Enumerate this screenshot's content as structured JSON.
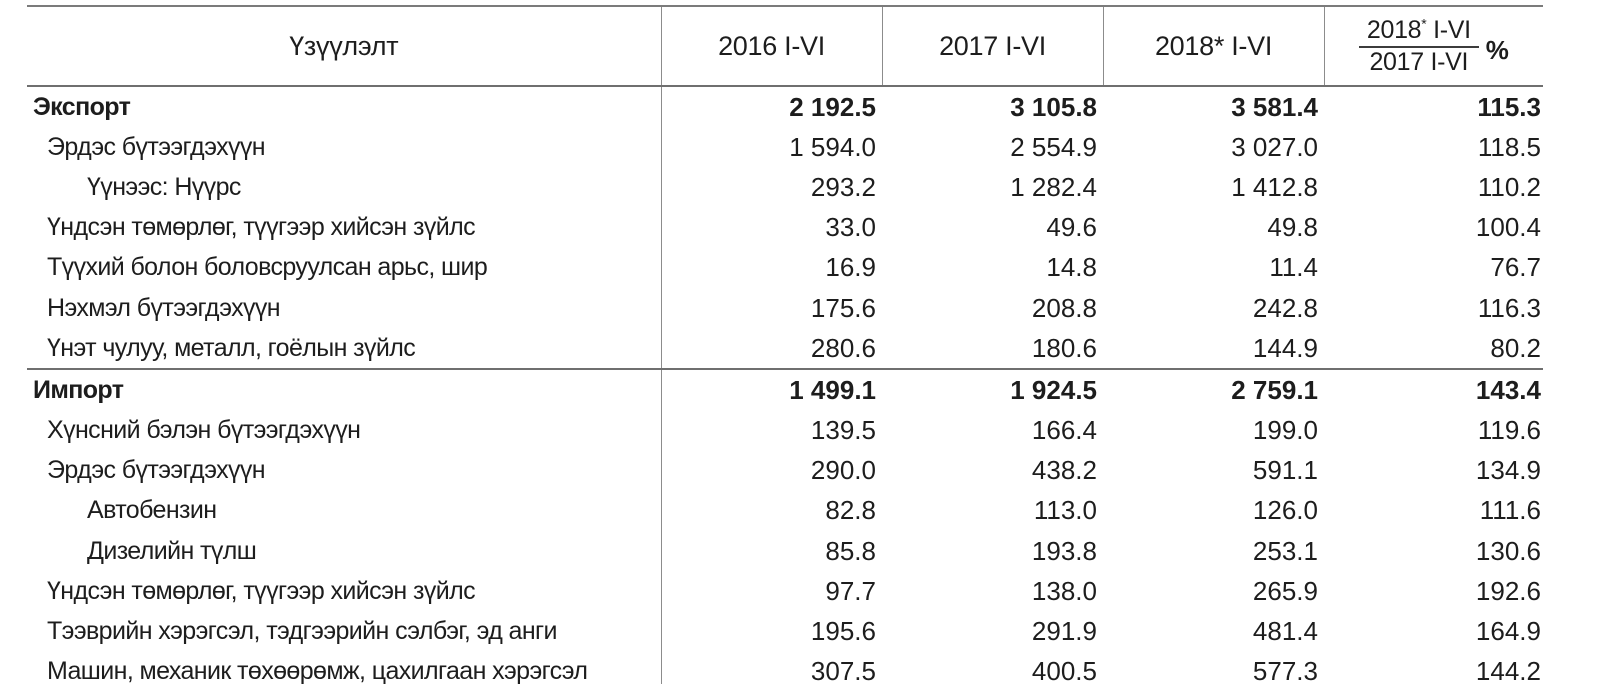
{
  "table": {
    "columns": {
      "indicator": "Үзүүлэлт",
      "y2016": "2016 I-VI",
      "y2017": "2017 I-VI",
      "y2018": "2018* I-VI"
    },
    "ratio_header": {
      "numerator_base": "2018",
      "numerator_star": "*",
      "numerator_suffix": " I-VI",
      "denominator": "2017 I-VI",
      "unit": "%"
    },
    "sections": [
      {
        "id": "export",
        "header": {
          "label": "Экспорт",
          "values": [
            "2 192.5",
            "3 105.8",
            "3 581.4",
            "115.3"
          ]
        },
        "rows": [
          {
            "label": "Эрдэс бүтээгдэхүүн",
            "indent": 1,
            "values": [
              "1 594.0",
              "2 554.9",
              "3 027.0",
              "118.5"
            ]
          },
          {
            "label": "Үүнээс: Нүүрс",
            "indent": 2,
            "values": [
              "293.2",
              "1 282.4",
              "1 412.8",
              "110.2"
            ]
          },
          {
            "label": "Үндсэн төмөрлөг, түүгээр хийсэн зүйлс",
            "indent": 1,
            "values": [
              "33.0",
              "49.6",
              "49.8",
              "100.4"
            ]
          },
          {
            "label": "Түүхий болон боловсруулсан арьс, шир",
            "indent": 1,
            "values": [
              "16.9",
              "14.8",
              "11.4",
              "76.7"
            ]
          },
          {
            "label": "Нэхмэл бүтээгдэхүүн",
            "indent": 1,
            "values": [
              "175.6",
              "208.8",
              "242.8",
              "116.3"
            ]
          },
          {
            "label": "Үнэт чулуу, металл, гоёлын зүйлс",
            "indent": 1,
            "values": [
              "280.6",
              "180.6",
              "144.9",
              "80.2"
            ]
          }
        ]
      },
      {
        "id": "import",
        "header": {
          "label": "Импорт",
          "values": [
            "1 499.1",
            "1 924.5",
            "2 759.1",
            "143.4"
          ]
        },
        "rows": [
          {
            "label": "Хүнсний бэлэн бүтээгдэхүүн",
            "indent": 1,
            "values": [
              "139.5",
              "166.4",
              "199.0",
              "119.6"
            ]
          },
          {
            "label": "Эрдэс бүтээгдэхүүн",
            "indent": 1,
            "values": [
              "290.0",
              "438.2",
              "591.1",
              "134.9"
            ]
          },
          {
            "label": "Автобензин",
            "indent": 2,
            "values": [
              "82.8",
              "113.0",
              "126.0",
              "111.6"
            ]
          },
          {
            "label": "Дизелийн түлш",
            "indent": 2,
            "values": [
              "85.8",
              "193.8",
              "253.1",
              "130.6"
            ]
          },
          {
            "label": "Үндсэн төмөрлөг, түүгээр хийсэн зүйлс",
            "indent": 1,
            "values": [
              "97.7",
              "138.0",
              "265.9",
              "192.6"
            ]
          },
          {
            "label": "Тээврийн хэрэгсэл, тэдгээрийн сэлбэг, эд анги",
            "indent": 1,
            "values": [
              "195.6",
              "291.9",
              "481.4",
              "164.9"
            ]
          },
          {
            "label": "Машин, механик төхөөрөмж, цахилгаан хэрэгсэл",
            "indent": 1,
            "values": [
              "307.5",
              "400.5",
              "577.3",
              "144.2"
            ]
          }
        ]
      }
    ]
  },
  "chart_data": {
    "type": "table",
    "title": "",
    "columns": [
      "Үзүүлэлт",
      "2016 I-VI",
      "2017 I-VI",
      "2018* I-VI",
      "2018* I-VI / 2017 I-VI %"
    ],
    "rows": [
      [
        "Экспорт",
        2192.5,
        3105.8,
        3581.4,
        115.3
      ],
      [
        "Эрдэс бүтээгдэхүүн",
        1594.0,
        2554.9,
        3027.0,
        118.5
      ],
      [
        "Үүнээс: Нүүрс",
        293.2,
        1282.4,
        1412.8,
        110.2
      ],
      [
        "Үндсэн төмөрлөг, түүгээр хийсэн зүйлс",
        33.0,
        49.6,
        49.8,
        100.4
      ],
      [
        "Түүхий болон боловсруулсан арьс, шир",
        16.9,
        14.8,
        11.4,
        76.7
      ],
      [
        "Нэхмэл бүтээгдэхүүн",
        175.6,
        208.8,
        242.8,
        116.3
      ],
      [
        "Үнэт чулуу, металл, гоёлын зүйлс",
        280.6,
        180.6,
        144.9,
        80.2
      ],
      [
        "Импорт",
        1499.1,
        1924.5,
        2759.1,
        143.4
      ],
      [
        "Хүнсний бэлэн бүтээгдэхүүн",
        139.5,
        166.4,
        199.0,
        119.6
      ],
      [
        "Эрдэс бүтээгдэхүүн",
        290.0,
        438.2,
        591.1,
        134.9
      ],
      [
        "Автобензин",
        82.8,
        113.0,
        126.0,
        111.6
      ],
      [
        "Дизелийн түлш",
        85.8,
        193.8,
        253.1,
        130.6
      ],
      [
        "Үндсэн төмөрлөг, түүгээр хийсэн зүйлс",
        97.7,
        138.0,
        265.9,
        192.6
      ],
      [
        "Тээврийн хэрэгсэл, тэдгээрийн сэлбэг, эд анги",
        195.6,
        291.9,
        481.4,
        164.9
      ],
      [
        "Машин, механик төхөөрөмж, цахилгаан хэрэгсэл",
        307.5,
        400.5,
        577.3,
        144.2
      ]
    ]
  },
  "colors": {
    "text": "#1d1d1d",
    "grid_line": "#6f6f6f",
    "vertical_line": "#8c8c8c",
    "background": "#ffffff"
  }
}
